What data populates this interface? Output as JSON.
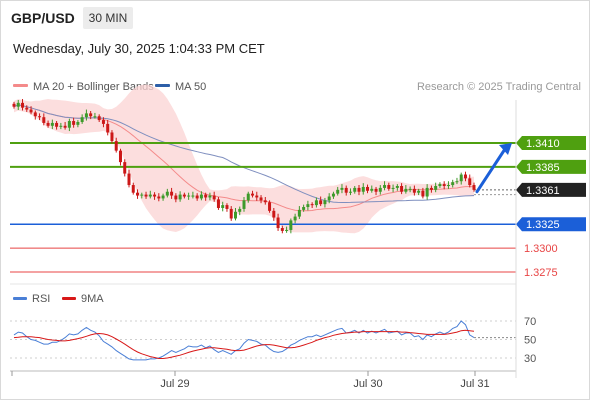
{
  "header": {
    "symbol": "GBP/USD",
    "timeframe": "30 MIN",
    "datetime": "Wednesday, July 30, 2025 1:04:33 PM CET"
  },
  "legend": {
    "bollinger": "MA 20 + Bollinger Bands",
    "ma50": "MA 50",
    "rsi": "RSI",
    "rsi_ma": "9MA"
  },
  "copyright": "Research © 2025 Trading Central",
  "colors": {
    "bollinger": "#f48a8a",
    "bollinger_band": "#fbd3d3",
    "ma50": "#2d5fa8",
    "candle_up": "#3d9a2a",
    "candle_down": "#cc1818",
    "resistance": "#4fa010",
    "pivot": "#1b5fd8",
    "support": "#e84545",
    "last_price": "#222222",
    "rsi": "#4a7fd6",
    "rsi_ma": "#d81818"
  },
  "chart_data": [
    {
      "type": "candlestick",
      "x_ticks": [
        "Jul 29",
        "Jul 30",
        "Jul 31"
      ],
      "y_range": [
        1.325,
        1.348
      ],
      "levels": [
        {
          "label": "1.3410",
          "value": 1.341,
          "kind": "resistance"
        },
        {
          "label": "1.3385",
          "value": 1.3385,
          "kind": "resistance"
        },
        {
          "label": "1.3325",
          "value": 1.3325,
          "kind": "pivot"
        },
        {
          "label": "1.3300",
          "value": 1.33,
          "kind": "support"
        },
        {
          "label": "1.3275",
          "value": 1.3275,
          "kind": "support"
        }
      ],
      "last_price": {
        "label": "1.3361",
        "value": 1.3361
      },
      "forecast": {
        "direction": "up",
        "from": 1.3359,
        "to": 1.341
      },
      "closes": [
        1.3448,
        1.3452,
        1.3447,
        1.3445,
        1.3442,
        1.3438,
        1.3437,
        1.3431,
        1.3428,
        1.3431,
        1.3427,
        1.3428,
        1.3426,
        1.3433,
        1.3429,
        1.3432,
        1.3437,
        1.3441,
        1.3438,
        1.3438,
        1.3434,
        1.343,
        1.3421,
        1.3412,
        1.3402,
        1.339,
        1.3378,
        1.3366,
        1.3358,
        1.3355,
        1.3356,
        1.3354,
        1.3356,
        1.3354,
        1.3352,
        1.3355,
        1.3359,
        1.3355,
        1.3351,
        1.3356,
        1.3354,
        1.3355,
        1.3355,
        1.3352,
        1.3356,
        1.3353,
        1.3355,
        1.3351,
        1.3342,
        1.3345,
        1.3341,
        1.3331,
        1.3338,
        1.3341,
        1.335,
        1.3357,
        1.3355,
        1.3353,
        1.335,
        1.3348,
        1.3339,
        1.3332,
        1.3321,
        1.3318,
        1.3319,
        1.3329,
        1.3333,
        1.334,
        1.3343,
        1.3346,
        1.3345,
        1.335,
        1.3346,
        1.335,
        1.3354,
        1.3357,
        1.3361,
        1.3363,
        1.3358,
        1.3359,
        1.3363,
        1.3359,
        1.3364,
        1.336,
        1.3362,
        1.3359,
        1.3363,
        1.3366,
        1.3362,
        1.3363,
        1.3365,
        1.3359,
        1.3362,
        1.3362,
        1.3358,
        1.336,
        1.3354,
        1.3363,
        1.3361,
        1.3365,
        1.3367,
        1.3365,
        1.3366,
        1.3369,
        1.337,
        1.3377,
        1.3373,
        1.3366,
        1.3361
      ]
    },
    {
      "type": "line",
      "name": "RSI",
      "y_ticks": [
        70,
        50,
        30
      ],
      "y_range": [
        20,
        80
      ],
      "series": [
        {
          "name": "RSI",
          "values": [
            55,
            58,
            57,
            53,
            50,
            49,
            47,
            45,
            45,
            47,
            47,
            49,
            52,
            56,
            55,
            56,
            60,
            63,
            60,
            58,
            54,
            48,
            45,
            42,
            38,
            35,
            32,
            29,
            28,
            28,
            28,
            28,
            29,
            29,
            30,
            32,
            35,
            38,
            36,
            38,
            40,
            43,
            42,
            42,
            44,
            41,
            43,
            39,
            36,
            38,
            36,
            34,
            38,
            40,
            46,
            50,
            49,
            48,
            45,
            44,
            40,
            37,
            36,
            37,
            40,
            44,
            46,
            49,
            51,
            53,
            53,
            55,
            53,
            55,
            57,
            59,
            61,
            62,
            57,
            58,
            60,
            57,
            60,
            57,
            59,
            57,
            59,
            61,
            57,
            58,
            59,
            55,
            57,
            57,
            53,
            54,
            50,
            55,
            53,
            56,
            58,
            56,
            58,
            62,
            64,
            70,
            66,
            55,
            52
          ]
        },
        {
          "name": "9MA",
          "values": [
            52,
            52.5,
            53,
            53,
            53,
            52.5,
            52,
            51,
            50,
            49.5,
            49,
            48.5,
            48.5,
            49,
            50,
            51,
            52,
            53.5,
            55,
            56,
            56.5,
            56,
            55,
            53,
            50.5,
            48,
            45,
            42,
            39,
            36.5,
            34.5,
            33,
            31.5,
            30.5,
            29.5,
            29.5,
            30,
            31,
            32,
            33,
            34.5,
            36,
            37.5,
            38.5,
            39.5,
            40.5,
            41,
            41,
            40.5,
            40,
            39.5,
            38.5,
            38,
            38,
            38.5,
            40,
            41.5,
            43,
            44,
            44.5,
            44.5,
            44,
            43,
            42,
            41,
            41,
            41.5,
            42.5,
            44,
            45.5,
            47,
            49,
            50.5,
            52,
            53,
            54.5,
            55.5,
            56.5,
            57,
            57.5,
            58,
            58,
            58.5,
            58.5,
            58.5,
            58.5,
            58.5,
            58.5,
            58.5,
            58.5,
            58.5,
            58,
            58,
            57.5,
            57,
            56.5,
            56,
            55.5,
            55.5,
            55.5,
            55.5,
            55.5,
            56,
            57,
            58,
            59.5,
            60,
            59.5,
            59
          ]
        }
      ]
    }
  ]
}
